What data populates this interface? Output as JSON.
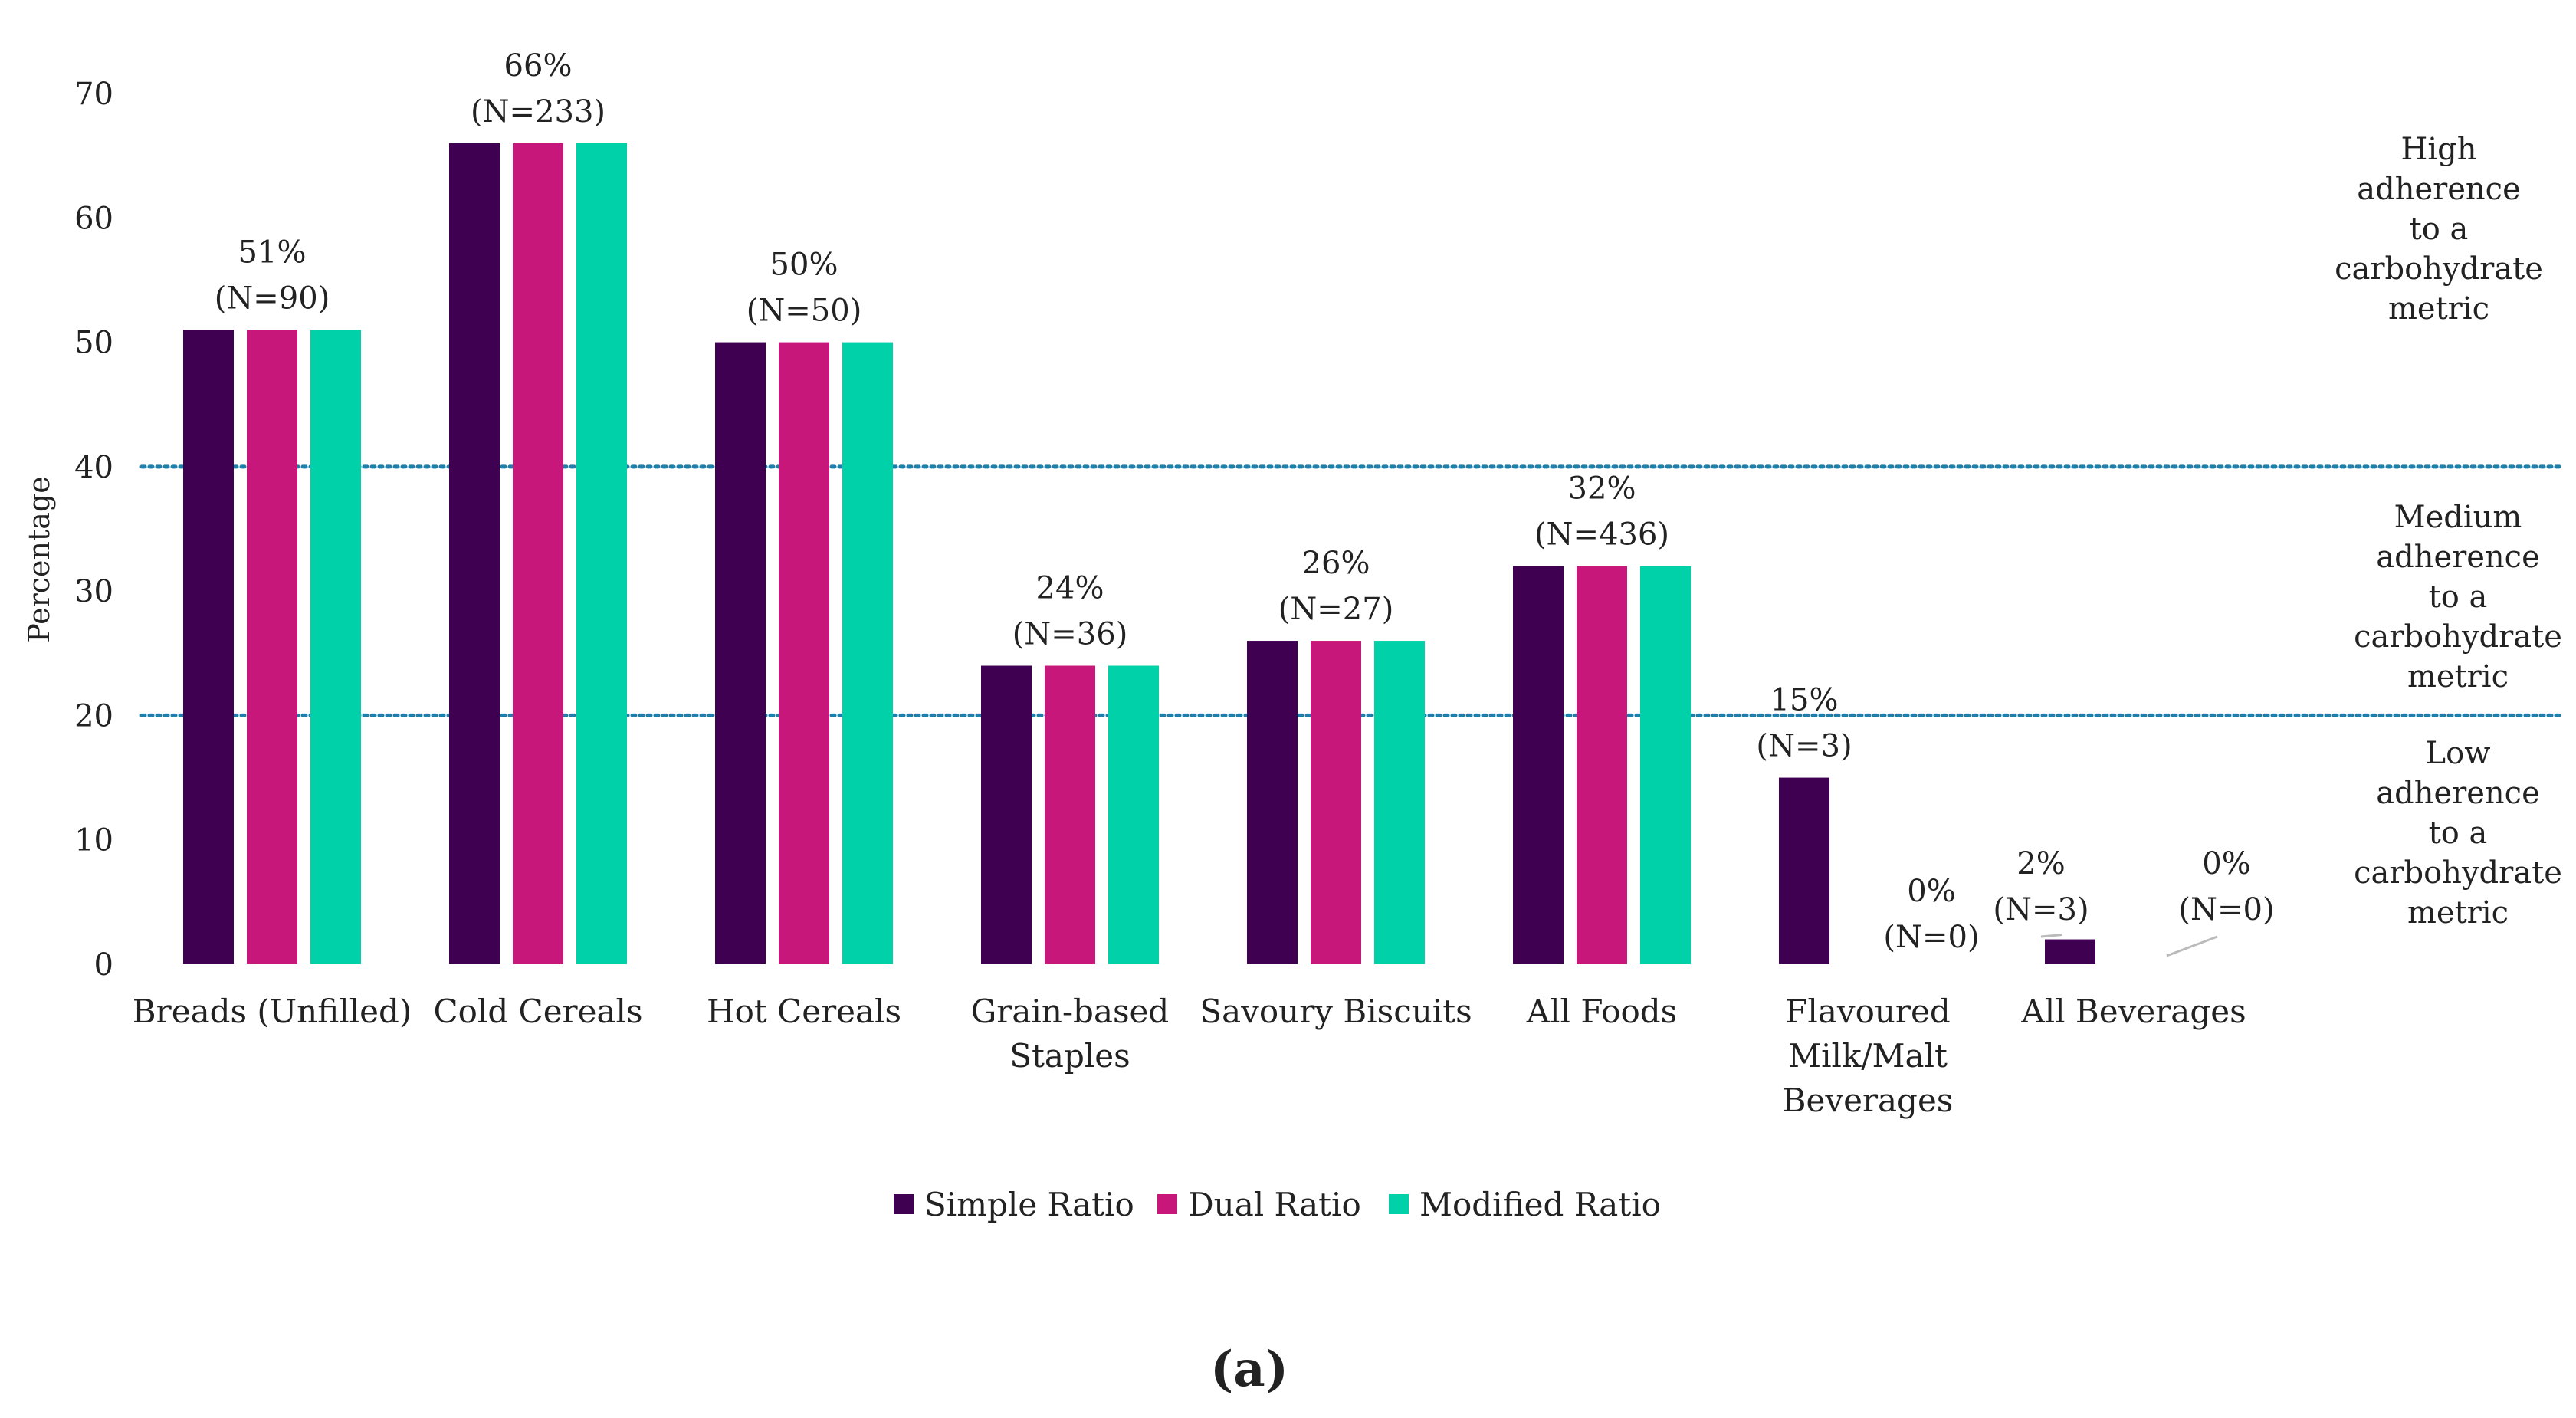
{
  "chart_data": {
    "type": "bar",
    "panel_label": "(a)",
    "ylabel": "Percentage",
    "ylim": [
      0,
      70
    ],
    "yticks": [
      0,
      10,
      20,
      30,
      40,
      50,
      60,
      70
    ],
    "grid": false,
    "legend_position": "bottom-center",
    "categories": [
      [
        "Breads (Unfilled)"
      ],
      [
        "Cold Cereals"
      ],
      [
        "Hot Cereals"
      ],
      [
        "Grain-based",
        "Staples"
      ],
      [
        "Savoury Biscuits"
      ],
      [
        "All Foods"
      ],
      [
        "Flavoured",
        "Milk/Malt",
        "Beverages"
      ],
      [
        "All Beverages"
      ]
    ],
    "series": [
      {
        "name": "Simple Ratio",
        "color": "#3f0052",
        "values": [
          51,
          66,
          50,
          24,
          26,
          32,
          15,
          2
        ]
      },
      {
        "name": "Dual Ratio",
        "color": "#c8177a",
        "values": [
          51,
          66,
          50,
          24,
          26,
          32,
          0,
          0
        ]
      },
      {
        "name": "Modified Ratio",
        "color": "#00d1a8",
        "values": [
          51,
          66,
          50,
          24,
          26,
          32,
          0,
          0
        ]
      }
    ],
    "annotations": [
      {
        "category": 0,
        "series": 1,
        "pct": "51%",
        "n": "(N=90)",
        "y": 51
      },
      {
        "category": 1,
        "series": 1,
        "pct": "66%",
        "n": "(N=233)",
        "y": 66
      },
      {
        "category": 2,
        "series": 1,
        "pct": "50%",
        "n": "(N=50)",
        "y": 50
      },
      {
        "category": 3,
        "series": 1,
        "pct": "24%",
        "n": "(N=36)",
        "y": 24
      },
      {
        "category": 4,
        "series": 1,
        "pct": "26%",
        "n": "(N=27)",
        "y": 26
      },
      {
        "category": 5,
        "series": 1,
        "pct": "32%",
        "n": "(N=436)",
        "y": 32
      },
      {
        "category": 6,
        "series": 0,
        "pct": "15%",
        "n": "(N=3)",
        "y": 15
      },
      {
        "category": 6,
        "series": 2,
        "pct": "0%",
        "n": "(N=0)",
        "y": 0
      },
      {
        "category": 7,
        "series": 0,
        "pct": "2%",
        "n": "(N=3)",
        "y": 2,
        "leader": true
      },
      {
        "category": 7,
        "series": 2,
        "pct": "0%",
        "n": "(N=0)",
        "y": 0,
        "leader": true
      }
    ],
    "reference_lines": [
      {
        "value": 40,
        "color": "#1f7fa8",
        "style": "dotted"
      },
      {
        "value": 20,
        "color": "#1f7fa8",
        "style": "dotted"
      }
    ],
    "zones": [
      {
        "lines": [
          "High",
          "adherence",
          "to a",
          "carbohydrate",
          "metric"
        ],
        "from": 40,
        "to": 70
      },
      {
        "lines": [
          "Medium",
          "adherence",
          "to a",
          "carbohydrate",
          "metric"
        ],
        "from": 20,
        "to": 40
      },
      {
        "lines": [
          "Low",
          "adherence",
          "to a",
          "carbohydrate",
          "metric"
        ],
        "from": 0,
        "to": 20
      }
    ]
  }
}
